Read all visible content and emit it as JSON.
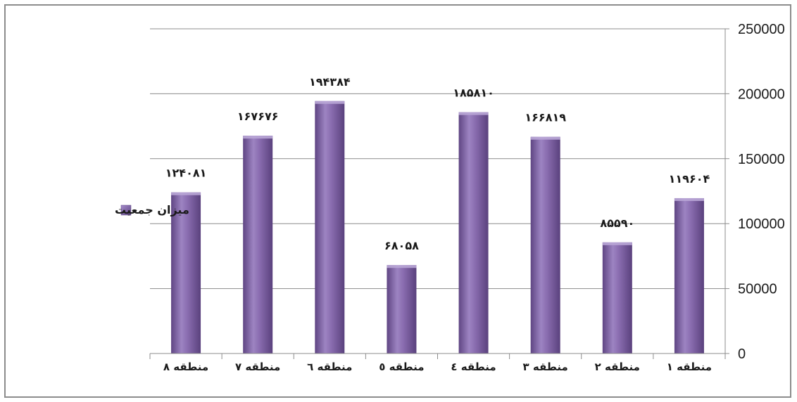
{
  "chart_data": {
    "type": "bar",
    "categories": [
      "منطقه ۱",
      "منطقه ۲",
      "منطقه ۳",
      "منطقه ٤",
      "منطقه ٥",
      "منطقه ٦",
      "منطقه ۷",
      "منطقه ۸"
    ],
    "series": [
      {
        "name": "میزان جمعیت",
        "values": [
          119604,
          85590,
          166819,
          185810,
          68058,
          194384,
          167676,
          124081
        ],
        "labels": [
          "۱۱۹۶۰۴",
          "۸۵۵۹۰",
          "۱۶۶۸۱۹",
          "۱۸۵۸۱۰",
          "۶۸۰۵۸",
          "۱۹۴۳۸۴",
          "۱۶۷۶۷۶",
          "۱۲۴۰۸۱"
        ]
      }
    ],
    "ylim": [
      0,
      250000
    ],
    "yticks": [
      "0",
      "50000",
      "100000",
      "150000",
      "200000",
      "250000"
    ],
    "x_direction": "right-to-left",
    "y_axis_side": "right",
    "grid": true,
    "legend_position": "left",
    "colors": {
      "bar": "#8064A2",
      "bar_light": "#9d84c2",
      "bar_dark": "#5f4583",
      "grid": "#8c8c8c"
    }
  }
}
